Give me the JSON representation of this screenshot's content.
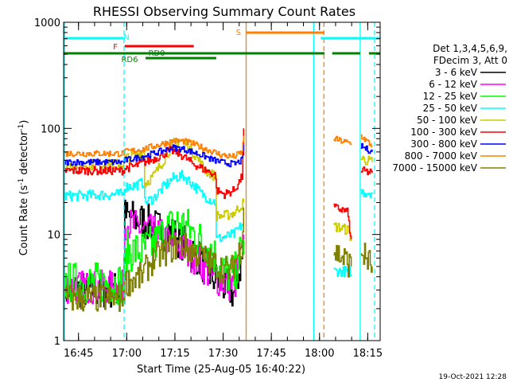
{
  "chart_data": {
    "type": "line",
    "title": "RHESSI Observing Summary Count Rates",
    "xlabel": "Start Time (25-Aug-05 16:40:22)",
    "ylabel": "Count Rate (s⁻¹ detector⁻¹)",
    "ylabel_parts": [
      "Count Rate (s",
      "-1",
      " detector",
      "-1",
      ")"
    ],
    "yscale": "log",
    "ylim": [
      1,
      1000
    ],
    "xlim": [
      0,
      98.5
    ],
    "x_unit": "minutes since 16:40:22",
    "y_ticks": [
      {
        "v": 1,
        "label": "1"
      },
      {
        "v": 10,
        "label": "10"
      },
      {
        "v": 100,
        "label": "100"
      },
      {
        "v": 1000,
        "label": "1000"
      }
    ],
    "x_ticks": [
      {
        "v": 4.63,
        "label": "16:45"
      },
      {
        "v": 19.63,
        "label": "17:00"
      },
      {
        "v": 34.63,
        "label": "17:15"
      },
      {
        "v": 49.63,
        "label": "17:30"
      },
      {
        "v": 64.63,
        "label": "17:45"
      },
      {
        "v": 79.63,
        "label": "18:00"
      },
      {
        "v": 94.63,
        "label": "18:15"
      }
    ],
    "legend_header": [
      "Det 1,3,4,5,6,9,",
      "FDecim 3, Att 0"
    ],
    "timestamp": "19-Oct-2021 12:28",
    "state_bars": [
      {
        "label": "N",
        "color": "#00ffff",
        "segments": [
          [
            0,
            18.6
          ],
          [
            80,
            98.5
          ]
        ]
      },
      {
        "label": "F",
        "color": "#ff0000",
        "segments": [
          [
            19,
            40.5
          ]
        ]
      },
      {
        "label": "RD0",
        "color": "#008000",
        "segments": [
          [
            0,
            81.2
          ],
          [
            83.6,
            92.3
          ],
          [
            95,
            98.5
          ]
        ]
      },
      {
        "label": "RD6",
        "color": "#008000",
        "segments": [
          [
            25.5,
            47.5
          ]
        ]
      },
      {
        "label": "S",
        "color": "#ff8000",
        "segments": [
          [
            56.8,
            81.2
          ]
        ]
      }
    ],
    "event_lines": [
      {
        "x": 0.3,
        "color": "#00ffff",
        "style": "solid"
      },
      {
        "x": 18.8,
        "color": "#00ffff",
        "style": "dashed"
      },
      {
        "x": 56.8,
        "color": "#ff8000",
        "style": "solid"
      },
      {
        "x": 77.8,
        "color": "#00ffff",
        "style": "solid"
      },
      {
        "x": 81.0,
        "color": "#ff8000",
        "style": "dashed"
      },
      {
        "x": 92.3,
        "color": "#00ffff",
        "style": "solid"
      },
      {
        "x": 96.8,
        "color": "#00ffff",
        "style": "dashed"
      }
    ],
    "series": [
      {
        "name": "3 - 6 keV",
        "color": "#000000",
        "noise": 0.18,
        "segments": [
          [
            [
              0,
              3.0
            ],
            [
              18.5,
              3.0
            ],
            [
              19.0,
              15
            ],
            [
              22,
              14
            ],
            [
              26,
              13
            ],
            [
              30,
              11
            ],
            [
              34,
              10
            ],
            [
              38,
              8
            ],
            [
              42,
              6
            ],
            [
              46,
              4
            ],
            [
              50,
              3.2
            ],
            [
              53,
              2.8
            ],
            [
              56,
              7
            ]
          ]
        ]
      },
      {
        "name": "6 - 12 keV",
        "color": "#ff00ff",
        "noise": 0.16,
        "segments": [
          [
            [
              0,
              3.2
            ],
            [
              18.5,
              3.2
            ],
            [
              19.0,
              13
            ],
            [
              22,
              12
            ],
            [
              26,
              11
            ],
            [
              30,
              10
            ],
            [
              34,
              8
            ],
            [
              38,
              7
            ],
            [
              42,
              5.5
            ],
            [
              46,
              4
            ],
            [
              50,
              3.5
            ],
            [
              53,
              3.2
            ],
            [
              56,
              8
            ]
          ]
        ]
      },
      {
        "name": "12 - 25 keV",
        "color": "#00ff00",
        "noise": 0.2,
        "segments": [
          [
            [
              0,
              3.5
            ],
            [
              18.5,
              3.5
            ],
            [
              19.5,
              7
            ],
            [
              24,
              7
            ],
            [
              28,
              8
            ],
            [
              32,
              11
            ],
            [
              35,
              13
            ],
            [
              38,
              12
            ],
            [
              42,
              9
            ],
            [
              46,
              7
            ],
            [
              50,
              4.5
            ],
            [
              53,
              4
            ],
            [
              56,
              9
            ]
          ]
        ]
      },
      {
        "name": "25 - 50 keV",
        "color": "#00ffff",
        "noise": 0.05,
        "segments": [
          [
            [
              0,
              23
            ],
            [
              18.5,
              24
            ],
            [
              19.0,
              28
            ],
            [
              22,
              29
            ],
            [
              25,
              31
            ],
            [
              25.2,
              20
            ],
            [
              28,
              22
            ],
            [
              31,
              28
            ],
            [
              34,
              34
            ],
            [
              37,
              36
            ],
            [
              40,
              30
            ],
            [
              43,
              24
            ],
            [
              46,
              21
            ],
            [
              47.3,
              20
            ],
            [
              47.5,
              9
            ],
            [
              50,
              9.5
            ],
            [
              53,
              10
            ],
            [
              56,
              13
            ]
          ],
          [
            [
              84,
              4.5
            ],
            [
              88.5,
              4.5
            ],
            [
              89,
              4.5
            ],
            [
              89.2,
              4.5
            ],
            [
              89.5,
              4.2
            ]
          ],
          [
            [
              92.5,
              25
            ],
            [
              96,
              25
            ]
          ]
        ]
      },
      {
        "name": "50 - 100 keV",
        "color": "#cccc00",
        "noise": 0.05,
        "segments": [
          [
            [
              0,
              45
            ],
            [
              18.5,
              46
            ],
            [
              19.0,
              52
            ],
            [
              22,
              56
            ],
            [
              25,
              60
            ],
            [
              25.2,
              30
            ],
            [
              28,
              36
            ],
            [
              31,
              50
            ],
            [
              34,
              72
            ],
            [
              36,
              78
            ],
            [
              38,
              72
            ],
            [
              41,
              55
            ],
            [
              44,
              40
            ],
            [
              47.3,
              35
            ],
            [
              47.5,
              15
            ],
            [
              50,
              15
            ],
            [
              53,
              16
            ],
            [
              56,
              20
            ]
          ],
          [
            [
              84,
              12
            ],
            [
              88.5,
              11
            ],
            [
              89.5,
              9
            ]
          ],
          [
            [
              92.5,
              52
            ],
            [
              96,
              48
            ]
          ]
        ]
      },
      {
        "name": "100 - 300 keV",
        "color": "#ff0000",
        "noise": 0.04,
        "segments": [
          [
            [
              0,
              40
            ],
            [
              18.5,
              40
            ],
            [
              19.0,
              42
            ],
            [
              22,
              44
            ],
            [
              25,
              48
            ],
            [
              27,
              50
            ],
            [
              30,
              55
            ],
            [
              33,
              62
            ],
            [
              35,
              60
            ],
            [
              37,
              55
            ],
            [
              40,
              47
            ],
            [
              43,
              42
            ],
            [
              46,
              38
            ],
            [
              47.3,
              36
            ],
            [
              47.5,
              26
            ],
            [
              50,
              24
            ],
            [
              53,
              26
            ],
            [
              55.5,
              35
            ],
            [
              56,
              100
            ]
          ],
          [
            [
              84,
              18
            ],
            [
              87,
              17
            ],
            [
              88.5,
              16
            ],
            [
              89,
              10
            ],
            [
              89.5,
              9
            ]
          ],
          [
            [
              92.5,
              40
            ],
            [
              96,
              38
            ]
          ]
        ]
      },
      {
        "name": "300 - 800 keV",
        "color": "#0000ff",
        "noise": 0.03,
        "segments": [
          [
            [
              0,
              48
            ],
            [
              18.5,
              48
            ],
            [
              19.0,
              50
            ],
            [
              22,
              52
            ],
            [
              25,
              55
            ],
            [
              28,
              58
            ],
            [
              31,
              62
            ],
            [
              34,
              66
            ],
            [
              37,
              64
            ],
            [
              40,
              60
            ],
            [
              43,
              56
            ],
            [
              46,
              51
            ],
            [
              49,
              48
            ],
            [
              53,
              46
            ],
            [
              55.5,
              50
            ],
            [
              56,
              70
            ]
          ],
          [
            [
              92.5,
              68
            ],
            [
              96,
              60
            ]
          ]
        ]
      },
      {
        "name": "800 - 7000 keV",
        "color": "#ff8000",
        "noise": 0.03,
        "segments": [
          [
            [
              0,
              58
            ],
            [
              18.5,
              58
            ],
            [
              19.0,
              60
            ],
            [
              22,
              62
            ],
            [
              25,
              64
            ],
            [
              28,
              68
            ],
            [
              31,
              72
            ],
            [
              34,
              76
            ],
            [
              37,
              76
            ],
            [
              40,
              72
            ],
            [
              43,
              66
            ],
            [
              46,
              61
            ],
            [
              49,
              56
            ],
            [
              53,
              54
            ],
            [
              55.5,
              60
            ],
            [
              56,
              85
            ]
          ],
          [
            [
              84,
              80
            ],
            [
              87,
              75
            ],
            [
              89.5,
              72
            ]
          ],
          [
            [
              92.5,
              85
            ],
            [
              96,
              68
            ]
          ]
        ]
      },
      {
        "name": "7000 - 15000 keV",
        "color": "#808000",
        "noise": 0.14,
        "segments": [
          [
            [
              0,
              2.5
            ],
            [
              18.5,
              2.5
            ],
            [
              19.0,
              3.5
            ],
            [
              24,
              4
            ],
            [
              28,
              6
            ],
            [
              32,
              7
            ],
            [
              36,
              8
            ],
            [
              40,
              7
            ],
            [
              44,
              6
            ],
            [
              48,
              5
            ],
            [
              52,
              4.5
            ],
            [
              55.5,
              8
            ],
            [
              56,
              18
            ]
          ],
          [
            [
              84,
              7
            ],
            [
              87,
              6
            ],
            [
              89.5,
              5
            ]
          ],
          [
            [
              92.5,
              7
            ],
            [
              96,
              5
            ]
          ]
        ]
      }
    ]
  }
}
